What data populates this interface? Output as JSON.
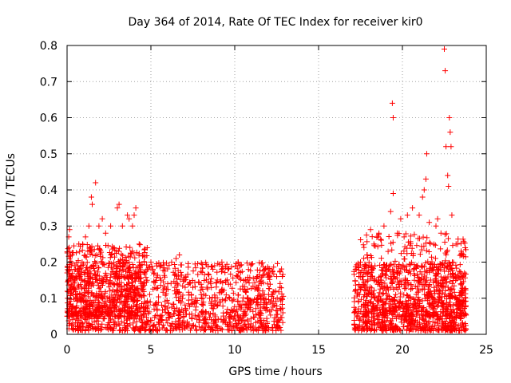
{
  "chart_data": {
    "type": "scatter",
    "title": "Day 364 of 2014, Rate Of TEC Index for receiver kir0",
    "xlabel": "GPS time / hours",
    "ylabel": "ROTI / TECUs",
    "xlim": [
      0,
      25
    ],
    "ylim": [
      0,
      0.8
    ],
    "xticks": [
      "0",
      "5",
      "10",
      "15",
      "20",
      "25"
    ],
    "xtick_values": [
      0,
      5,
      10,
      15,
      20,
      25
    ],
    "yticks": [
      "0",
      "0.1",
      "0.2",
      "0.3",
      "0.4",
      "0.5",
      "0.6",
      "0.7",
      "0.8"
    ],
    "ytick_values": [
      0,
      0.1,
      0.2,
      0.3,
      0.4,
      0.5,
      0.6,
      0.7,
      0.8
    ],
    "grid": true,
    "marker": "+",
    "color": "#ff0000",
    "series": [
      {
        "name": "kir0",
        "points": [
          [
            0.1,
            0.27
          ],
          [
            0.15,
            0.29
          ],
          [
            0.3,
            0.22
          ],
          [
            0.5,
            0.18
          ],
          [
            0.7,
            0.25
          ],
          [
            0.9,
            0.2
          ],
          [
            1.1,
            0.27
          ],
          [
            1.3,
            0.3
          ],
          [
            1.45,
            0.38
          ],
          [
            1.5,
            0.36
          ],
          [
            1.7,
            0.42
          ],
          [
            1.9,
            0.3
          ],
          [
            2.1,
            0.32
          ],
          [
            2.3,
            0.28
          ],
          [
            2.6,
            0.3
          ],
          [
            2.8,
            0.24
          ],
          [
            3.0,
            0.35
          ],
          [
            3.1,
            0.36
          ],
          [
            3.3,
            0.3
          ],
          [
            3.6,
            0.33
          ],
          [
            3.7,
            0.32
          ],
          [
            3.9,
            0.3
          ],
          [
            4.0,
            0.33
          ],
          [
            4.1,
            0.35
          ],
          [
            4.3,
            0.25
          ],
          [
            4.6,
            0.2
          ],
          [
            5.0,
            0.2
          ],
          [
            5.2,
            0.17
          ],
          [
            5.6,
            0.15
          ],
          [
            6.0,
            0.14
          ],
          [
            6.5,
            0.21
          ],
          [
            6.7,
            0.22
          ],
          [
            7.0,
            0.15
          ],
          [
            7.5,
            0.13
          ],
          [
            8.0,
            0.11
          ],
          [
            8.5,
            0.1
          ],
          [
            8.7,
            0.18
          ],
          [
            8.8,
            0.19
          ],
          [
            9.2,
            0.12
          ],
          [
            9.7,
            0.1
          ],
          [
            10.2,
            0.2
          ],
          [
            10.3,
            0.19
          ],
          [
            10.8,
            0.15
          ],
          [
            11.3,
            0.13
          ],
          [
            11.8,
            0.18
          ],
          [
            12.2,
            0.11
          ],
          [
            12.5,
            0.16
          ],
          [
            12.7,
            0.13
          ],
          [
            17.2,
            0.18
          ],
          [
            17.5,
            0.2
          ],
          [
            17.9,
            0.22
          ],
          [
            18.1,
            0.29
          ],
          [
            18.3,
            0.25
          ],
          [
            18.6,
            0.28
          ],
          [
            18.9,
            0.3
          ],
          [
            19.3,
            0.34
          ],
          [
            19.4,
            0.64
          ],
          [
            19.45,
            0.6
          ],
          [
            19.45,
            0.39
          ],
          [
            19.7,
            0.28
          ],
          [
            19.9,
            0.32
          ],
          [
            20.3,
            0.33
          ],
          [
            20.6,
            0.35
          ],
          [
            21.0,
            0.33
          ],
          [
            21.2,
            0.38
          ],
          [
            21.3,
            0.4
          ],
          [
            21.4,
            0.43
          ],
          [
            21.45,
            0.5
          ],
          [
            21.6,
            0.31
          ],
          [
            22.0,
            0.3
          ],
          [
            22.1,
            0.32
          ],
          [
            22.3,
            0.28
          ],
          [
            22.5,
            0.79
          ],
          [
            22.55,
            0.73
          ],
          [
            22.6,
            0.52
          ],
          [
            22.7,
            0.44
          ],
          [
            22.75,
            0.41
          ],
          [
            22.8,
            0.6
          ],
          [
            22.85,
            0.56
          ],
          [
            22.9,
            0.52
          ],
          [
            22.95,
            0.33
          ],
          [
            23.2,
            0.25
          ],
          [
            23.5,
            0.23
          ],
          [
            23.7,
            0.17
          ]
        ],
        "dense_bands": [
          {
            "x_range": [
              0,
              12.9
            ],
            "y_range": [
              0.01,
              0.2
            ],
            "count": 1300
          },
          {
            "x_range": [
              0,
              4.8
            ],
            "y_range": [
              0.05,
              0.25
            ],
            "count": 500
          },
          {
            "x_range": [
              17.1,
              23.8
            ],
            "y_range": [
              0.01,
              0.2
            ],
            "count": 900
          },
          {
            "x_range": [
              17.5,
              23.8
            ],
            "y_range": [
              0.05,
              0.28
            ],
            "count": 400
          }
        ]
      }
    ]
  }
}
